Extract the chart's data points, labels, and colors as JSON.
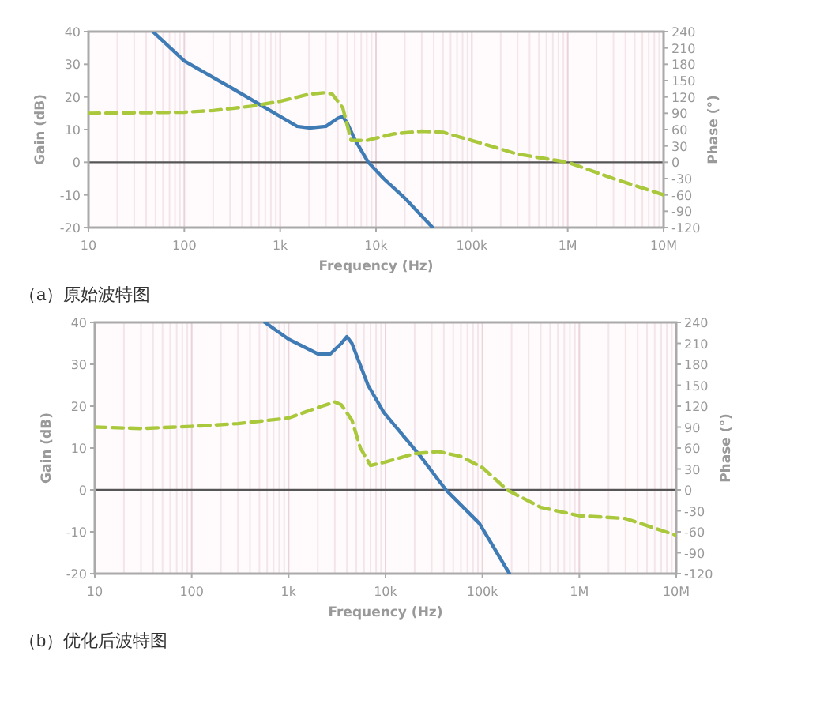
{
  "chart_data": [
    {
      "type": "line",
      "xlabel": "Frequency (Hz)",
      "ylabel": "Gain (dB)",
      "y2label": "Phase (°)",
      "log": "x",
      "grid": "x",
      "xlim": [
        10,
        10000000
      ],
      "xticks": [
        {
          "value": 10,
          "label": "10"
        },
        {
          "value": 100,
          "label": "100"
        },
        {
          "value": 1000,
          "label": "1k"
        },
        {
          "value": 10000,
          "label": "10k"
        },
        {
          "value": 100000,
          "label": "100k"
        },
        {
          "value": 1000000,
          "label": "1M"
        },
        {
          "value": 10000000,
          "label": "10M"
        }
      ],
      "ylim": [
        -20,
        40
      ],
      "yticks": [
        -20,
        -10,
        0,
        10,
        20,
        30,
        40
      ],
      "y2lim": [
        -120,
        240
      ],
      "y2ticks": [
        -120,
        -90,
        -60,
        -30,
        0,
        30,
        60,
        90,
        120,
        150,
        180,
        210,
        240
      ],
      "ref_lines": [
        {
          "axis": "y",
          "value": 0,
          "color": "#555555"
        }
      ],
      "annotations": [
        "（a）原始波特图"
      ],
      "series": [
        {
          "color": "#3f7bb5",
          "line_style": "solid",
          "x": [
            47,
            100,
            300,
            1000,
            1500,
            2000,
            3000,
            4000,
            4500,
            5000,
            6000,
            8300,
            12000,
            20000,
            39000
          ],
          "values": [
            40,
            31,
            23,
            14,
            11,
            10.5,
            11,
            13.5,
            14,
            12,
            7,
            0,
            -5,
            -11,
            -20
          ]
        },
        {
          "color": "#a9c83c",
          "line_style": "dashed",
          "axis": "y2",
          "x": [
            10,
            100,
            200,
            500,
            1000,
            2000,
            3000,
            3500,
            4500,
            5500,
            8000,
            15000,
            30000,
            50000,
            100000,
            300000,
            1000000,
            3000000,
            10000000
          ],
          "values": [
            90,
            92,
            95,
            103,
            112,
            125,
            128,
            125,
            100,
            40,
            40,
            52,
            57,
            55,
            40,
            15,
            0,
            -30,
            -60
          ]
        }
      ]
    },
    {
      "type": "line",
      "xlabel": "Frequency (Hz)",
      "ylabel": "Gain (dB)",
      "y2label": "Phase (°)",
      "log": "x",
      "grid": "x",
      "xlim": [
        10,
        10000000
      ],
      "xticks": [
        {
          "value": 10,
          "label": "10"
        },
        {
          "value": 100,
          "label": "100"
        },
        {
          "value": 1000,
          "label": "1k"
        },
        {
          "value": 10000,
          "label": "10k"
        },
        {
          "value": 100000,
          "label": "100k"
        },
        {
          "value": 1000000,
          "label": "1M"
        },
        {
          "value": 10000000,
          "label": "10M"
        }
      ],
      "ylim": [
        -20,
        40
      ],
      "yticks": [
        -20,
        -10,
        0,
        10,
        20,
        30,
        40
      ],
      "y2lim": [
        -120,
        240
      ],
      "y2ticks": [
        -120,
        -90,
        -60,
        -30,
        0,
        30,
        60,
        90,
        120,
        150,
        180,
        210,
        240
      ],
      "ref_lines": [
        {
          "axis": "y",
          "value": 0,
          "color": "#555555"
        }
      ],
      "annotations": [
        "（b）优化后波特图"
      ],
      "series": [
        {
          "color": "#3f7bb5",
          "line_style": "solid",
          "x": [
            571,
            1000,
            2000,
            2700,
            3500,
            4000,
            4500,
            6600,
            9600,
            23000,
            42000,
            93000,
            190000
          ],
          "values": [
            40,
            36,
            32.5,
            32.5,
            35,
            36.6,
            35,
            25,
            18.5,
            8,
            0,
            -8,
            -20
          ]
        },
        {
          "color": "#a9c83c",
          "line_style": "dashed",
          "axis": "y2",
          "x": [
            10,
            30,
            100,
            300,
            1000,
            2000,
            3000,
            3500,
            4500,
            5500,
            7000,
            10000,
            20000,
            35000,
            60000,
            100000,
            180000,
            400000,
            1000000,
            3000000,
            10000000
          ],
          "values": [
            90,
            88,
            91,
            95,
            103,
            118,
            126,
            122,
            100,
            60,
            35,
            40,
            52,
            55,
            48,
            32,
            0,
            -25,
            -37,
            -41,
            -65
          ]
        }
      ]
    }
  ]
}
